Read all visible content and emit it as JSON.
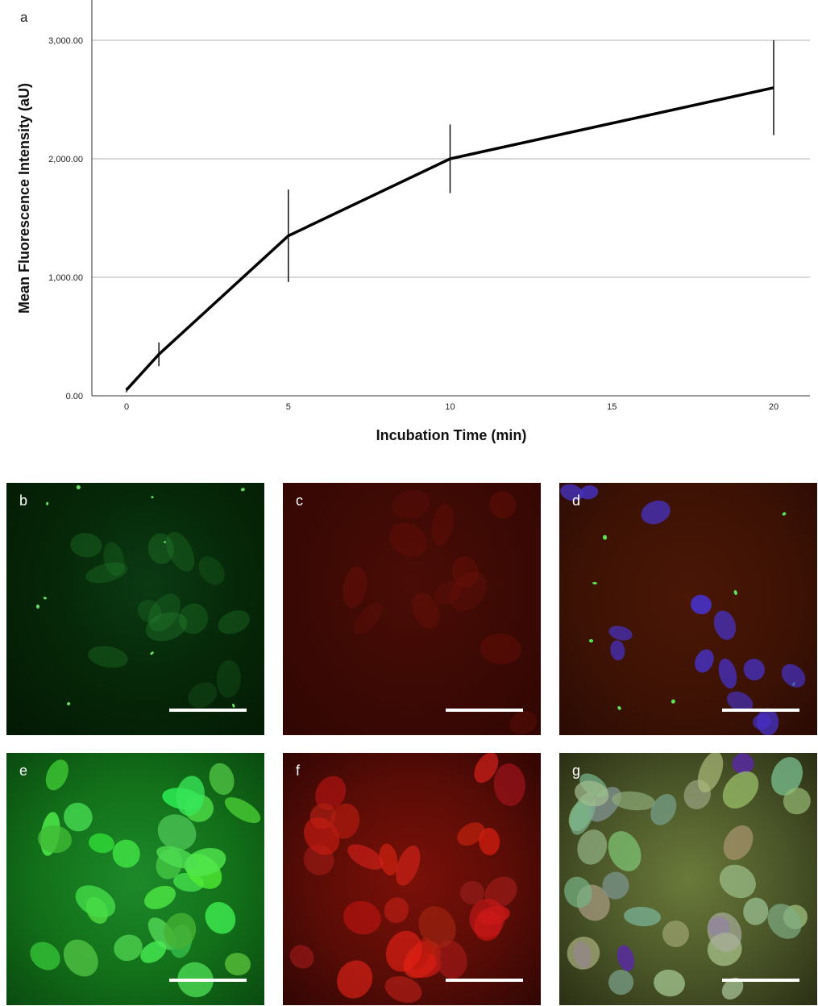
{
  "chart_data": {
    "type": "line",
    "panel_label": "a",
    "xlabel": "Incubation Time (min)",
    "ylabel": "Mean Fluorescence Intensity (aU)",
    "x_ticks": [
      "0",
      "5",
      "10",
      "15",
      "20"
    ],
    "y_ticks": [
      "0.00",
      "1,000.00",
      "2,000.00",
      "3,000.00"
    ],
    "xlim": [
      0,
      20
    ],
    "ylim": [
      0,
      3000
    ],
    "grid": "horizontal",
    "series": [
      {
        "x": [
          0,
          1,
          5,
          10,
          20
        ],
        "y": [
          50,
          350,
          1350,
          2000,
          2600
        ],
        "error": [
          20,
          100,
          390,
          290,
          400
        ]
      }
    ]
  },
  "panels": [
    {
      "label": "b",
      "channel": "green"
    },
    {
      "label": "c",
      "channel": "red"
    },
    {
      "label": "d",
      "channel": "merge"
    },
    {
      "label": "e",
      "channel": "green"
    },
    {
      "label": "f",
      "channel": "red"
    },
    {
      "label": "g",
      "channel": "merge"
    }
  ],
  "colors": {
    "line": "#000000",
    "grid": "#b0b0b0",
    "green_channel": "#1d8a2a",
    "red_channel": "#7a1008",
    "nucleus_blue": "#3a30c0"
  }
}
